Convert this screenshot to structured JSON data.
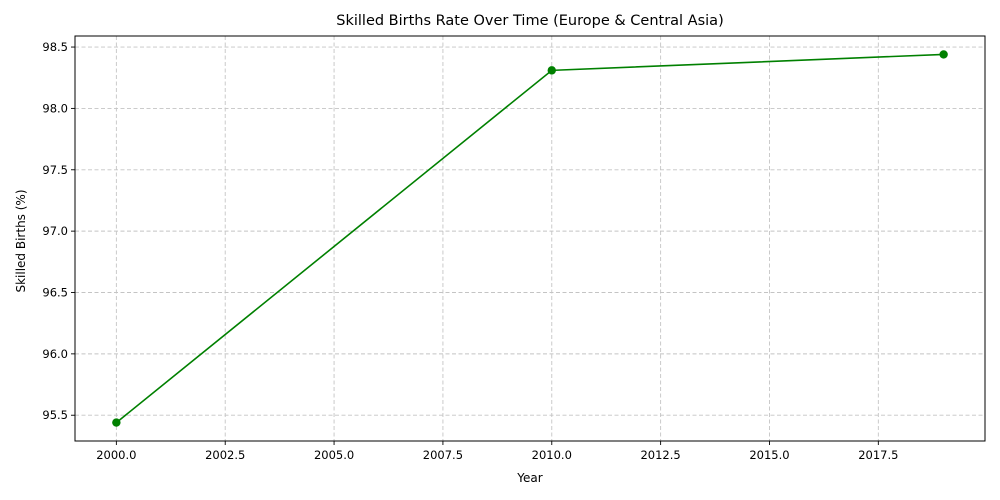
{
  "chart_data": {
    "type": "line",
    "title": "Skilled Births Rate Over Time (Europe & Central Asia)",
    "xlabel": "Year",
    "ylabel": "Skilled Births (%)",
    "x": [
      2000,
      2010,
      2019
    ],
    "series": [
      {
        "values": [
          95.44,
          98.31,
          98.44
        ],
        "color": "#008000"
      }
    ],
    "xlim": [
      1999.05,
      2019.95
    ],
    "ylim": [
      95.29,
      98.59
    ],
    "xticks": [
      "2000.0",
      "2002.5",
      "2005.0",
      "2007.5",
      "2010.0",
      "2012.5",
      "2015.0",
      "2017.5"
    ],
    "yticks": [
      "95.5",
      "96.0",
      "96.5",
      "97.0",
      "97.5",
      "98.0",
      "98.5"
    ],
    "grid": true,
    "marker": "circle"
  }
}
